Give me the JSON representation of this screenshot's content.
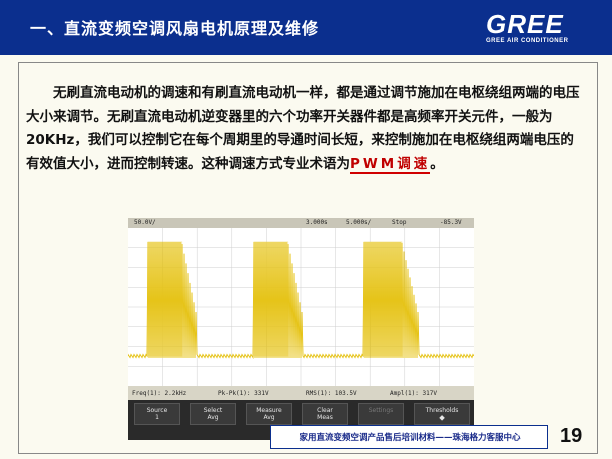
{
  "header": {
    "title": "一、直流变频空调风扇电机原理及维修",
    "logo_text": "GREE",
    "logo_subtitle": "GREE AIR CONDITIONER"
  },
  "content": {
    "paragraph_main": "无刷直流电动机的调速和有刷直流电动机一样，都是通过调节施加在电枢绕组两端的电压大小来调节。无刷直流电动机逆变器里的六个功率开关器件都是高频率开关元件，一般为20KHz，我们可以控制它在每个周期里的导通时间长短，来控制施加在电枢绕组两端电压的有效值大小，进而控制转速。这种调速方式专业术语为",
    "paragraph_term": "PWM调速",
    "paragraph_end": "。"
  },
  "oscilloscope": {
    "top_bar": {
      "scale": "50.0V/",
      "time_pos": "3.000s",
      "time_scale": "5.000s/",
      "run_state": "Stop",
      "trigger_level": "-85.3V"
    },
    "measurements": {
      "freq": "Freq(1): 2.2kHz",
      "pk_pk": "Pk-Pk(1): 331V",
      "rms": "RMS(1): 103.5V",
      "ampl": "Ampl(1): 317V"
    },
    "menu": [
      {
        "label": "Source",
        "value": "1"
      },
      {
        "label": "Select",
        "value": "Avg"
      },
      {
        "label": "Measure",
        "value": "Avg"
      },
      {
        "label": "Clear",
        "value": "Meas"
      },
      {
        "label": "Settings",
        "value": ""
      },
      {
        "label": "Thresholds",
        "value": ""
      }
    ],
    "trace_color": "#e6c419",
    "screen_bg": "#ffffff"
  },
  "footer": {
    "text": "家用直流变频空调产品售后培训材料——珠海格力客服中心",
    "page_number": "19"
  },
  "colors": {
    "header_bg": "#0b2f8e",
    "accent_red": "#c00000"
  }
}
